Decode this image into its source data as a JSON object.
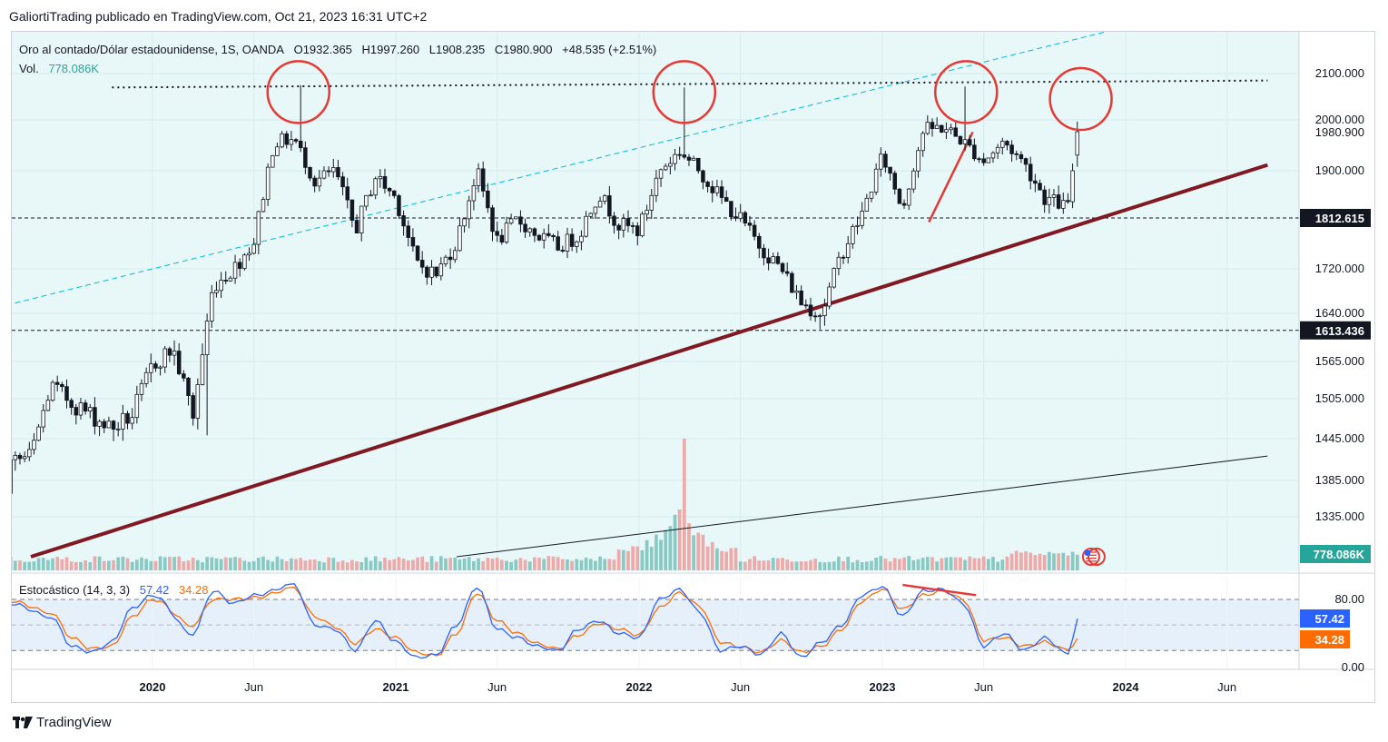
{
  "header": {
    "attribution": "GaliortiTrading publicado en TradingView.com, Oct 21, 2023 16:31 UTC+2"
  },
  "legend": {
    "symbol": "Oro al contado/Dólar estadounidense, 1S, OANDA",
    "open": "O1932.365",
    "high": "H1997.260",
    "low": "L1908.235",
    "close": "C1980.900",
    "change": "+48.535 (+2.51%)",
    "vol_label": "Vol.",
    "vol_value": "778.086K"
  },
  "stoch_legend": {
    "name": "Estocástico (14, 3, 3)",
    "k": "57.42",
    "d": "34.28"
  },
  "footer": {
    "brand": "TradingView"
  },
  "colors": {
    "bg_fill": "#e8f7f8",
    "bull": "#ffffff",
    "bear": "#131722",
    "vol_up": "#89c9c3",
    "vol_down": "#eea9a9",
    "support_line": "#801922",
    "channel_line": "#00bcd4",
    "circle": "#e53935",
    "k_line": "#2962ff",
    "d_line": "#ff6d00"
  },
  "chart_data": [
    {
      "type": "candlestick",
      "title": "Oro al contado/Dólar estadounidense, 1S, OANDA",
      "x_ticks": [
        "2020",
        "Jun",
        "2021",
        "Jun",
        "2022",
        "Jun",
        "2023",
        "Jun",
        "2024",
        "Jun"
      ],
      "x_range": [
        "2019-01",
        "2024-09"
      ],
      "y_ticks": [
        "2100.000",
        "2000.000",
        "1900.000",
        "1720.000",
        "1640.000",
        "1565.000",
        "1505.000",
        "1445.000",
        "1385.000",
        "1335.000"
      ],
      "ylim": [
        1280,
        2190
      ],
      "price_labels": [
        {
          "value": "1980.900",
          "price": 1980.9
        },
        {
          "value": "1812.615",
          "price": 1812.615
        },
        {
          "value": "1613.436",
          "price": 1613.436
        }
      ],
      "horizontal_levels": [
        2075,
        1812.615,
        1613.436
      ],
      "close_path": [
        [
          "2019-03",
          1300
        ],
        [
          "2019-05",
          1285
        ],
        [
          "2019-06",
          1410
        ],
        [
          "2019-07",
          1420
        ],
        [
          "2019-08",
          1525
        ],
        [
          "2019-09",
          1500
        ],
        [
          "2019-11",
          1460
        ],
        [
          "2019-12",
          1480
        ],
        [
          "2020-01",
          1560
        ],
        [
          "2020-02",
          1585
        ],
        [
          "2020-03",
          1480
        ],
        [
          "2020-04",
          1690
        ],
        [
          "2020-05",
          1720
        ],
        [
          "2020-06",
          1770
        ],
        [
          "2020-07",
          1960
        ],
        [
          "2020-08",
          1965
        ],
        [
          "2020-09",
          1880
        ],
        [
          "2020-10",
          1900
        ],
        [
          "2020-11",
          1790
        ],
        [
          "2020-12",
          1890
        ],
        [
          "2021-01",
          1850
        ],
        [
          "2021-02",
          1730
        ],
        [
          "2021-03",
          1710
        ],
        [
          "2021-04",
          1770
        ],
        [
          "2021-05",
          1900
        ],
        [
          "2021-06",
          1770
        ],
        [
          "2021-07",
          1810
        ],
        [
          "2021-08",
          1780
        ],
        [
          "2021-09",
          1760
        ],
        [
          "2021-10",
          1780
        ],
        [
          "2021-11",
          1860
        ],
        [
          "2021-12",
          1800
        ],
        [
          "2022-01",
          1790
        ],
        [
          "2022-02",
          1900
        ],
        [
          "2022-03",
          1940
        ],
        [
          "2022-04",
          1900
        ],
        [
          "2022-05",
          1850
        ],
        [
          "2022-06",
          1810
        ],
        [
          "2022-07",
          1760
        ],
        [
          "2022-08",
          1720
        ],
        [
          "2022-09",
          1660
        ],
        [
          "2022-10",
          1640
        ],
        [
          "2022-11",
          1750
        ],
        [
          "2022-12",
          1820
        ],
        [
          "2023-01",
          1930
        ],
        [
          "2023-02",
          1830
        ],
        [
          "2023-03",
          1980
        ],
        [
          "2023-04",
          1990
        ],
        [
          "2023-05",
          1960
        ],
        [
          "2023-06",
          1920
        ],
        [
          "2023-07",
          1960
        ],
        [
          "2023-08",
          1915
        ],
        [
          "2023-09",
          1850
        ],
        [
          "2023-10-06",
          1832
        ],
        [
          "2023-10-20",
          1980.9
        ]
      ],
      "lines": [
        {
          "kind": "trendline",
          "from": [
            "2019-07",
            1280
          ],
          "to": [
            "2024-08",
            1912
          ]
        },
        {
          "kind": "trendline",
          "from": [
            "2021-04",
            1280
          ],
          "to": [
            "2024-08",
            1420
          ]
        },
        {
          "kind": "dashed_channel",
          "from": [
            "2019-01",
            1615
          ],
          "to": [
            "2023-12",
            2190
          ]
        },
        {
          "kind": "dotted_resistance",
          "from": [
            "2019-11",
            2070
          ],
          "to": [
            "2024-08",
            2085
          ]
        },
        {
          "kind": "red_segment",
          "from": [
            "2023-03-10",
            1805
          ],
          "to": [
            "2023-05-15",
            1980
          ]
        }
      ],
      "highlight_circles": [
        {
          "center": [
            "2020-08-07",
            2060
          ]
        },
        {
          "center": [
            "2022-03-08",
            2060
          ]
        },
        {
          "center": [
            "2023-05-05",
            2060
          ]
        },
        {
          "center": [
            "2023-10-25",
            2045
          ]
        }
      ],
      "volume": {
        "last_value": "778.086K",
        "peak_date": "2022-03",
        "peak_relative": 1.0
      }
    },
    {
      "type": "line",
      "title": "Estocástico (14, 3, 3)",
      "y_ticks": [
        "80.00",
        "0.00"
      ],
      "ylim": [
        0,
        100
      ],
      "bands": [
        80,
        20
      ],
      "last_values": {
        "k": 57.42,
        "d": 34.28
      },
      "series": [
        {
          "name": "K",
          "values": [
            [
              "2019-01",
              70
            ],
            [
              "2019-02",
              88
            ],
            [
              "2019-03",
              95
            ],
            [
              "2019-05",
              80
            ],
            [
              "2019-06",
              75
            ],
            [
              "2019-08",
              60
            ],
            [
              "2019-09",
              25
            ],
            [
              "2019-10",
              18
            ],
            [
              "2019-11",
              30
            ],
            [
              "2019-12",
              70
            ],
            [
              "2020-01",
              85
            ],
            [
              "2020-03",
              40
            ],
            [
              "2020-04",
              90
            ],
            [
              "2020-05",
              75
            ],
            [
              "2020-06",
              85
            ],
            [
              "2020-08",
              97
            ],
            [
              "2020-09",
              50
            ],
            [
              "2020-10",
              45
            ],
            [
              "2020-11",
              20
            ],
            [
              "2020-12",
              55
            ],
            [
              "2021-01",
              30
            ],
            [
              "2021-02",
              12
            ],
            [
              "2021-03",
              15
            ],
            [
              "2021-04",
              50
            ],
            [
              "2021-05",
              95
            ],
            [
              "2021-06",
              45
            ],
            [
              "2021-07",
              35
            ],
            [
              "2021-08",
              25
            ],
            [
              "2021-09",
              20
            ],
            [
              "2021-10",
              45
            ],
            [
              "2021-11",
              55
            ],
            [
              "2021-12",
              40
            ],
            [
              "2022-01",
              35
            ],
            [
              "2022-02",
              80
            ],
            [
              "2022-03",
              92
            ],
            [
              "2022-04",
              65
            ],
            [
              "2022-05",
              20
            ],
            [
              "2022-06",
              25
            ],
            [
              "2022-07",
              15
            ],
            [
              "2022-08",
              40
            ],
            [
              "2022-09",
              12
            ],
            [
              "2022-10",
              30
            ],
            [
              "2022-11",
              50
            ],
            [
              "2022-12",
              85
            ],
            [
              "2023-01",
              95
            ],
            [
              "2023-02",
              60
            ],
            [
              "2023-03",
              90
            ],
            [
              "2023-04",
              92
            ],
            [
              "2023-05",
              75
            ],
            [
              "2023-06",
              25
            ],
            [
              "2023-07",
              40
            ],
            [
              "2023-08",
              20
            ],
            [
              "2023-09",
              35
            ],
            [
              "2023-10-06",
              15
            ],
            [
              "2023-10-20",
              57.42
            ]
          ]
        },
        {
          "name": "D",
          "values": [
            [
              "2019-01",
              60
            ],
            [
              "2019-02",
              80
            ],
            [
              "2019-03",
              92
            ],
            [
              "2019-05",
              85
            ],
            [
              "2019-06",
              78
            ],
            [
              "2019-08",
              65
            ],
            [
              "2019-09",
              35
            ],
            [
              "2019-10",
              22
            ],
            [
              "2019-11",
              25
            ],
            [
              "2019-12",
              60
            ],
            [
              "2020-01",
              80
            ],
            [
              "2020-03",
              50
            ],
            [
              "2020-04",
              80
            ],
            [
              "2020-05",
              80
            ],
            [
              "2020-06",
              82
            ],
            [
              "2020-08",
              93
            ],
            [
              "2020-09",
              60
            ],
            [
              "2020-10",
              48
            ],
            [
              "2020-11",
              28
            ],
            [
              "2020-12",
              45
            ],
            [
              "2021-01",
              35
            ],
            [
              "2021-02",
              18
            ],
            [
              "2021-03",
              14
            ],
            [
              "2021-04",
              40
            ],
            [
              "2021-05",
              88
            ],
            [
              "2021-06",
              55
            ],
            [
              "2021-07",
              40
            ],
            [
              "2021-08",
              28
            ],
            [
              "2021-09",
              22
            ],
            [
              "2021-10",
              38
            ],
            [
              "2021-11",
              52
            ],
            [
              "2021-12",
              45
            ],
            [
              "2022-01",
              38
            ],
            [
              "2022-02",
              70
            ],
            [
              "2022-03",
              88
            ],
            [
              "2022-04",
              72
            ],
            [
              "2022-05",
              30
            ],
            [
              "2022-06",
              24
            ],
            [
              "2022-07",
              18
            ],
            [
              "2022-08",
              32
            ],
            [
              "2022-09",
              18
            ],
            [
              "2022-10",
              25
            ],
            [
              "2022-11",
              45
            ],
            [
              "2022-12",
              78
            ],
            [
              "2023-01",
              92
            ],
            [
              "2023-02",
              68
            ],
            [
              "2023-03",
              85
            ],
            [
              "2023-04",
              90
            ],
            [
              "2023-05",
              80
            ],
            [
              "2023-06",
              32
            ],
            [
              "2023-07",
              35
            ],
            [
              "2023-08",
              25
            ],
            [
              "2023-09",
              30
            ],
            [
              "2023-10-06",
              20
            ],
            [
              "2023-10-20",
              34.28
            ]
          ]
        }
      ],
      "divergence_segment": {
        "from": [
          "2023-02-01",
          97
        ],
        "to": [
          "2023-05-20",
          85
        ]
      }
    }
  ]
}
